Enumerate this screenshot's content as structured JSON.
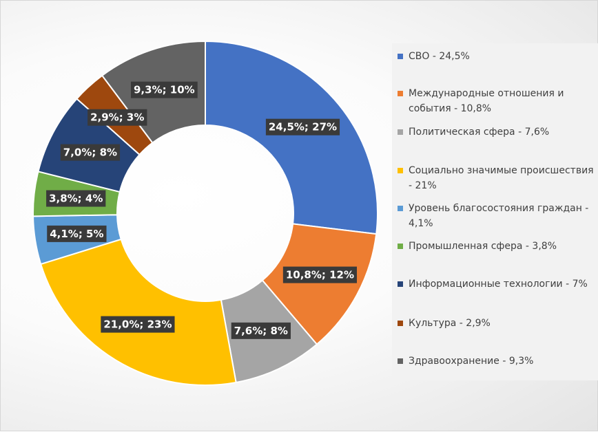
{
  "chart_data": {
    "type": "pie",
    "variant": "donut",
    "slices": [
      {
        "value": 24.5,
        "share": 27,
        "label": "24,5%; 27%",
        "color": "#4472C4"
      },
      {
        "value": 10.8,
        "share": 12,
        "label": "10,8%; 12%",
        "color": "#ED7D31"
      },
      {
        "value": 7.6,
        "share": 8,
        "label": "7,6%; 8%",
        "color": "#A5A5A5"
      },
      {
        "value": 21.0,
        "share": 23,
        "label": "21,0%; 23%",
        "color": "#FFC000"
      },
      {
        "value": 4.1,
        "share": 5,
        "label": "4,1%; 5%",
        "color": "#5B9BD5"
      },
      {
        "value": 3.8,
        "share": 4,
        "label": "3,8%; 4%",
        "color": "#70AD47"
      },
      {
        "value": 7.0,
        "share": 8,
        "label": "7,0%; 8%",
        "color": "#264478"
      },
      {
        "value": 2.9,
        "share": 3,
        "label": "2,9%; 3%",
        "color": "#9E480E"
      },
      {
        "value": 9.3,
        "share": 10,
        "label": "9,3%; 10%",
        "color": "#636363"
      }
    ],
    "legend": {
      "placement": "right",
      "items": [
        "СВО -  24,5%",
        "Международные отношения и события - 10,8%",
        "Политическая сфера - 7,6%",
        "Социально значимые происшествия - 21%",
        "Уровень благосостояния граждан - 4,1%",
        "Промышленная сфера - 3,8%",
        "Информационные технологии - 7%",
        "Культура - 2,9%",
        "Здравоохранение - 9,3%"
      ]
    }
  }
}
